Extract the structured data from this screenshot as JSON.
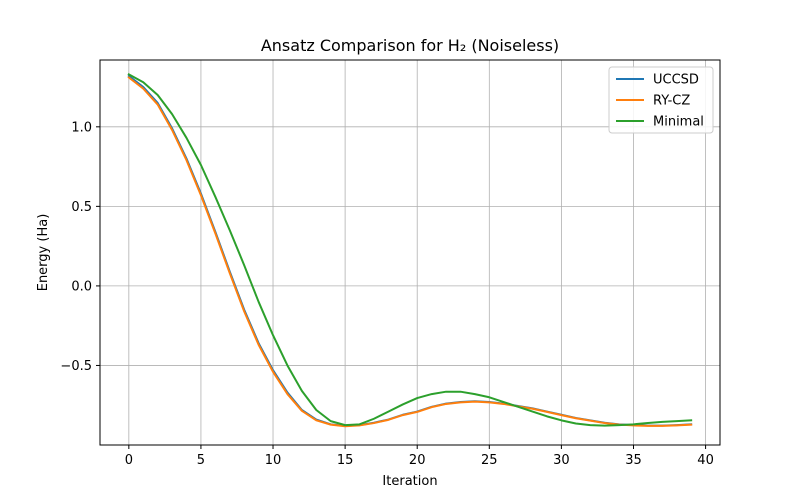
{
  "chart_data": {
    "type": "line",
    "title": "Ansatz Comparison for H₂ (Noiseless)",
    "xlabel": "Iteration",
    "ylabel": "Energy (Ha)",
    "xlim": [
      -2,
      41
    ],
    "ylim": [
      -1.0,
      1.42
    ],
    "x_ticks": [
      0,
      5,
      10,
      15,
      20,
      25,
      30,
      35,
      40
    ],
    "y_ticks": [
      -0.5,
      0.0,
      0.5,
      1.0
    ],
    "x_tick_labels": [
      "0",
      "5",
      "10",
      "15",
      "20",
      "25",
      "30",
      "35",
      "40"
    ],
    "y_tick_labels": [
      "−0.5",
      "0.0",
      "0.5",
      "1.0"
    ],
    "grid": true,
    "legend_position": "top-right",
    "x": [
      0,
      1,
      2,
      3,
      4,
      5,
      6,
      7,
      8,
      9,
      10,
      11,
      12,
      13,
      14,
      15,
      16,
      17,
      18,
      19,
      20,
      21,
      22,
      23,
      24,
      25,
      26,
      27,
      28,
      29,
      30,
      31,
      32,
      33,
      34,
      35,
      36,
      37,
      38,
      39
    ],
    "series": [
      {
        "name": "UCCSD",
        "color": "#1f77b4",
        "values": [
          1.32,
          1.25,
          1.15,
          0.99,
          0.8,
          0.58,
          0.34,
          0.09,
          -0.15,
          -0.36,
          -0.53,
          -0.67,
          -0.78,
          -0.84,
          -0.87,
          -0.88,
          -0.875,
          -0.86,
          -0.84,
          -0.81,
          -0.79,
          -0.76,
          -0.74,
          -0.73,
          -0.725,
          -0.73,
          -0.74,
          -0.755,
          -0.77,
          -0.79,
          -0.81,
          -0.83,
          -0.845,
          -0.86,
          -0.87,
          -0.875,
          -0.878,
          -0.878,
          -0.875,
          -0.87
        ]
      },
      {
        "name": "RY-CZ",
        "color": "#ff7f0e",
        "values": [
          1.31,
          1.24,
          1.14,
          0.98,
          0.79,
          0.57,
          0.33,
          0.08,
          -0.16,
          -0.37,
          -0.54,
          -0.68,
          -0.785,
          -0.845,
          -0.872,
          -0.882,
          -0.877,
          -0.862,
          -0.842,
          -0.812,
          -0.792,
          -0.762,
          -0.742,
          -0.732,
          -0.727,
          -0.732,
          -0.742,
          -0.757,
          -0.772,
          -0.792,
          -0.812,
          -0.832,
          -0.847,
          -0.862,
          -0.872,
          -0.877,
          -0.88,
          -0.88,
          -0.877,
          -0.872
        ]
      },
      {
        "name": "Minimal",
        "color": "#2ca02c",
        "values": [
          1.33,
          1.28,
          1.2,
          1.08,
          0.93,
          0.76,
          0.56,
          0.35,
          0.13,
          -0.1,
          -0.31,
          -0.5,
          -0.66,
          -0.78,
          -0.85,
          -0.875,
          -0.87,
          -0.835,
          -0.79,
          -0.745,
          -0.705,
          -0.68,
          -0.665,
          -0.665,
          -0.68,
          -0.7,
          -0.73,
          -0.76,
          -0.79,
          -0.82,
          -0.845,
          -0.865,
          -0.875,
          -0.878,
          -0.875,
          -0.87,
          -0.862,
          -0.855,
          -0.85,
          -0.845
        ]
      }
    ]
  }
}
